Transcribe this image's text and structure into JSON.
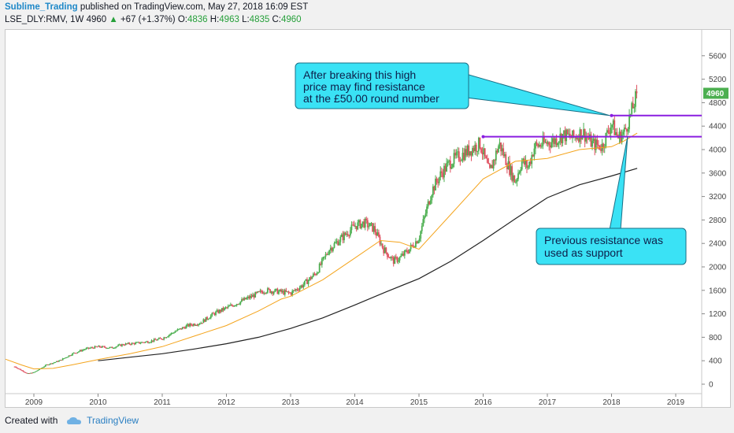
{
  "header": {
    "author": "Sublime_Trading",
    "published_text": " published on TradingView.com, May 27, 2018 16:09 EST",
    "symbol": "LSE_DLY:RMV, 1W",
    "price": "4960",
    "change": "+67 (+1.37%)",
    "o_label": "O:",
    "o_value": "4836",
    "h_label": "H:",
    "h_value": "4963",
    "l_label": "L:",
    "l_value": "4835",
    "c_label": "C:",
    "c_value": "4960"
  },
  "footer": {
    "created_with": "Created with",
    "brand": "TradingView"
  },
  "colors": {
    "up": "#4caf50",
    "down": "#e04f5f",
    "ma_short": "#f4a41c",
    "ma_long": "#222222",
    "resistance": "#8a1ee0",
    "callout_fill": "#3ae2f5",
    "price_label_bg": "#4caf50"
  },
  "chart_data": {
    "type": "candlestick",
    "x_tick_labels": [
      "2009",
      "2010",
      "2011",
      "2012",
      "2013",
      "2014",
      "2015",
      "2016",
      "2017",
      "2018",
      "2019"
    ],
    "y_tick_labels": [
      "0",
      "400",
      "800",
      "1200",
      "1600",
      "2000",
      "2400",
      "2800",
      "3200",
      "3600",
      "4000",
      "4400",
      "4800",
      "5200",
      "5600"
    ],
    "ylim": [
      -100,
      5800
    ],
    "last_price_label": "4960",
    "close_series": {
      "x": [
        2008.7,
        2008.9,
        2009.0,
        2009.2,
        2009.4,
        2009.6,
        2009.8,
        2010.0,
        2010.2,
        2010.4,
        2010.6,
        2010.8,
        2011.0,
        2011.2,
        2011.4,
        2011.6,
        2011.8,
        2012.0,
        2012.2,
        2012.4,
        2012.6,
        2012.8,
        2013.0,
        2013.2,
        2013.4,
        2013.6,
        2013.8,
        2014.0,
        2014.15,
        2014.3,
        2014.45,
        2014.6,
        2014.7,
        2014.85,
        2015.0,
        2015.1,
        2015.2,
        2015.35,
        2015.5,
        2015.65,
        2015.8,
        2015.95,
        2016.1,
        2016.25,
        2016.4,
        2016.5,
        2016.6,
        2016.7,
        2016.8,
        2016.95,
        2017.1,
        2017.25,
        2017.4,
        2017.55,
        2017.7,
        2017.85,
        2018.0,
        2018.1,
        2018.2,
        2018.3,
        2018.4
      ],
      "y": [
        300,
        180,
        200,
        330,
        400,
        520,
        600,
        640,
        620,
        680,
        700,
        730,
        780,
        900,
        1000,
        1050,
        1200,
        1300,
        1400,
        1500,
        1600,
        1580,
        1550,
        1700,
        1900,
        2300,
        2500,
        2700,
        2750,
        2650,
        2300,
        2100,
        2150,
        2300,
        2500,
        2900,
        3300,
        3600,
        3800,
        3900,
        4000,
        4100,
        3600,
        4100,
        3700,
        3450,
        3800,
        3700,
        4050,
        4100,
        4150,
        4250,
        4200,
        4300,
        4100,
        4050,
        4450,
        4200,
        4300,
        4600,
        4960
      ]
    },
    "series": [
      {
        "name": "",
        "type": "moving-average-short",
        "x": [
          2008.5,
          2008.8,
          2009.0,
          2009.3,
          2009.6,
          2010.0,
          2010.5,
          2011.0,
          2011.5,
          2012.0,
          2012.5,
          2012.85,
          2013.0,
          2013.5,
          2014.0,
          2014.4,
          2014.7,
          2015.0,
          2015.5,
          2016.0,
          2016.5,
          2017.0,
          2017.5,
          2018.0,
          2018.2,
          2018.4
        ],
        "y": [
          450,
          330,
          260,
          270,
          330,
          420,
          520,
          640,
          820,
          1000,
          1250,
          1450,
          1500,
          1780,
          2150,
          2450,
          2420,
          2300,
          2900,
          3500,
          3800,
          3850,
          4000,
          4050,
          4150,
          4280
        ]
      },
      {
        "name": "",
        "type": "moving-average-long",
        "x": [
          2010.0,
          2010.5,
          2011.0,
          2011.5,
          2012.0,
          2012.5,
          2013.0,
          2013.5,
          2014.0,
          2014.5,
          2015.0,
          2015.5,
          2016.0,
          2016.5,
          2017.0,
          2017.5,
          2018.0,
          2018.4
        ],
        "y": [
          400,
          460,
          520,
          600,
          690,
          800,
          950,
          1130,
          1350,
          1580,
          1800,
          2100,
          2450,
          2820,
          3180,
          3400,
          3550,
          3680
        ]
      }
    ],
    "levels": [
      {
        "name": "resistance-high",
        "y": 4580,
        "x_start": 2018.0,
        "x_end": 2019.5
      },
      {
        "name": "previous-resistance",
        "y": 4220,
        "x_start": 2016.0,
        "x_end": 2019.5
      }
    ],
    "annotations": [
      {
        "name": "callout-top",
        "lines": [
          "After breaking this high",
          "price may find resistance",
          "at the £50.00 round number"
        ]
      },
      {
        "name": "callout-bottom",
        "lines": [
          "Previous resistance was",
          "used as support"
        ]
      }
    ]
  }
}
